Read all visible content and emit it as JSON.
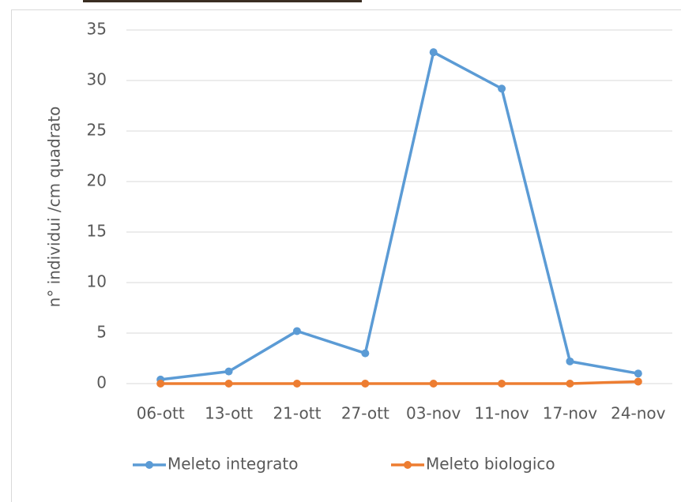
{
  "chart_data": {
    "type": "line",
    "y_label": "n° individui /cm quadrato",
    "categories": [
      "06-ott",
      "13-ott",
      "21-ott",
      "27-ott",
      "03-nov",
      "11-nov",
      "17-nov",
      "24-nov"
    ],
    "series": [
      {
        "name": "Meleto integrato",
        "color": "#5b9bd5",
        "values": [
          0.4,
          1.2,
          5.2,
          3.0,
          32.8,
          29.2,
          2.2,
          1.0
        ]
      },
      {
        "name": "Meleto biologico",
        "color": "#ed7d31",
        "values": [
          0,
          0,
          0,
          0,
          0,
          0,
          0,
          0.2
        ]
      }
    ],
    "ylim": [
      0,
      35
    ],
    "yticks": [
      0,
      5,
      10,
      15,
      20,
      25,
      30,
      35
    ],
    "grid": true,
    "legend": "bottom"
  }
}
